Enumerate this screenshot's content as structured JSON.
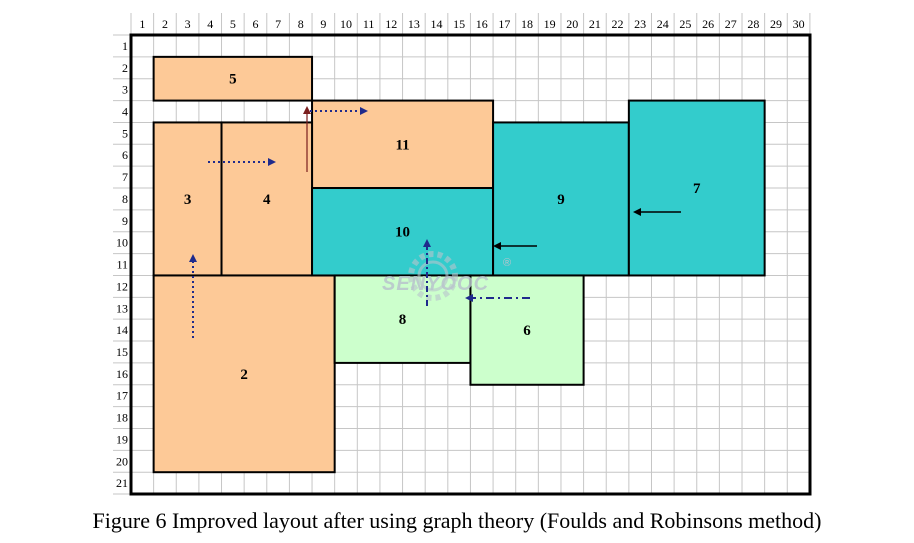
{
  "caption": "Figure 6 Improved layout after using graph theory (Foulds and Robinsons method)",
  "grid": {
    "columns": [
      "1",
      "2",
      "3",
      "4",
      "5",
      "6",
      "7",
      "8",
      "9",
      "10",
      "11",
      "12",
      "13",
      "14",
      "15",
      "16",
      "17",
      "18",
      "19",
      "20",
      "21",
      "22",
      "23",
      "24",
      "25",
      "26",
      "27",
      "28",
      "29",
      "30"
    ],
    "rows": [
      "1",
      "2",
      "3",
      "4",
      "5",
      "6",
      "7",
      "8",
      "9",
      "10",
      "11",
      "12",
      "13",
      "14",
      "15",
      "16",
      "17",
      "18",
      "19",
      "20",
      "21"
    ]
  },
  "colors": {
    "orange": "#fdc997",
    "teal": "#33cccc",
    "green": "#ccffcc",
    "grid": "#c6c6c6",
    "arrow_blue": "#1f2a8c"
  },
  "blocks": [
    {
      "label": "5",
      "fill": "orange",
      "c1": 1,
      "c2": 8,
      "r1": 1,
      "r2": 3
    },
    {
      "label": "11",
      "fill": "orange",
      "c1": 8,
      "c2": 16,
      "r1": 3,
      "r2": 7
    },
    {
      "label": "3",
      "fill": "orange",
      "c1": 1,
      "c2": 4,
      "r1": 4,
      "r2": 11
    },
    {
      "label": "4",
      "fill": "orange",
      "c1": 4,
      "c2": 8,
      "r1": 4,
      "r2": 11
    },
    {
      "label": "2",
      "fill": "orange",
      "c1": 1,
      "c2": 9,
      "r1": 11,
      "r2": 20
    },
    {
      "label": "10",
      "fill": "teal",
      "c1": 8,
      "c2": 16,
      "r1": 7,
      "r2": 11
    },
    {
      "label": "9",
      "fill": "teal",
      "c1": 16,
      "c2": 22,
      "r1": 4,
      "r2": 11
    },
    {
      "label": "7",
      "fill": "teal",
      "c1": 22,
      "c2": 28,
      "r1": 3,
      "r2": 11
    },
    {
      "label": "8",
      "fill": "green",
      "c1": 9,
      "c2": 15,
      "r1": 11,
      "r2": 15
    },
    {
      "label": "6",
      "fill": "green",
      "c1": 15,
      "c2": 20,
      "r1": 11,
      "r2": 16
    }
  ],
  "watermark": {
    "text": "SENYOOC",
    "mark": "®"
  }
}
